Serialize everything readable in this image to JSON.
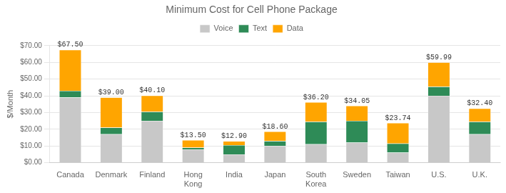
{
  "chart_data": {
    "type": "bar",
    "stacked": true,
    "title": "Minimum Cost for Cell Phone Package",
    "ylabel": "$/Month",
    "categories": [
      "Canada",
      "Denmark",
      "Finland",
      "Hong\nKong",
      "India",
      "Japan",
      "South\nKorea",
      "Sweden",
      "Taiwan",
      "U.S.",
      "U.K."
    ],
    "series": [
      {
        "name": "Voice",
        "color": "#c8c8c8",
        "values": [
          39.0,
          17.0,
          25.0,
          8.0,
          5.0,
          10.0,
          11.0,
          12.0,
          6.0,
          40.0,
          17.0
        ]
      },
      {
        "name": "Text",
        "color": "#2e8b57",
        "values": [
          4.0,
          4.0,
          5.5,
          1.0,
          5.5,
          3.0,
          13.5,
          13.0,
          5.5,
          5.5,
          7.5
        ]
      },
      {
        "name": "Data",
        "color": "#ffa500",
        "values": [
          24.5,
          18.0,
          9.6,
          4.5,
          2.4,
          5.6,
          11.7,
          9.05,
          12.24,
          14.49,
          7.9
        ]
      }
    ],
    "totals": [
      67.5,
      39.0,
      40.1,
      13.5,
      12.9,
      18.6,
      36.2,
      34.05,
      23.74,
      59.99,
      32.4
    ],
    "total_labels": [
      "$67.50",
      "$39.00",
      "$40.10",
      "$13.50",
      "$12.90",
      "$18.60",
      "$36.20",
      "$34.05",
      "$23.74",
      "$59.99",
      "$32.40"
    ],
    "ylim": [
      0,
      70
    ],
    "yticks": [
      {
        "value": 0,
        "label": "$0.00"
      },
      {
        "value": 10,
        "label": "$10.00"
      },
      {
        "value": 20,
        "label": "$20.00"
      },
      {
        "value": 30,
        "label": "$30.00"
      },
      {
        "value": 40,
        "label": "$40.00"
      },
      {
        "value": 50,
        "label": "$50.00"
      },
      {
        "value": 60,
        "label": "$60.00"
      },
      {
        "value": 70,
        "label": "$70.00"
      }
    ],
    "grid": true,
    "legend": "top"
  }
}
